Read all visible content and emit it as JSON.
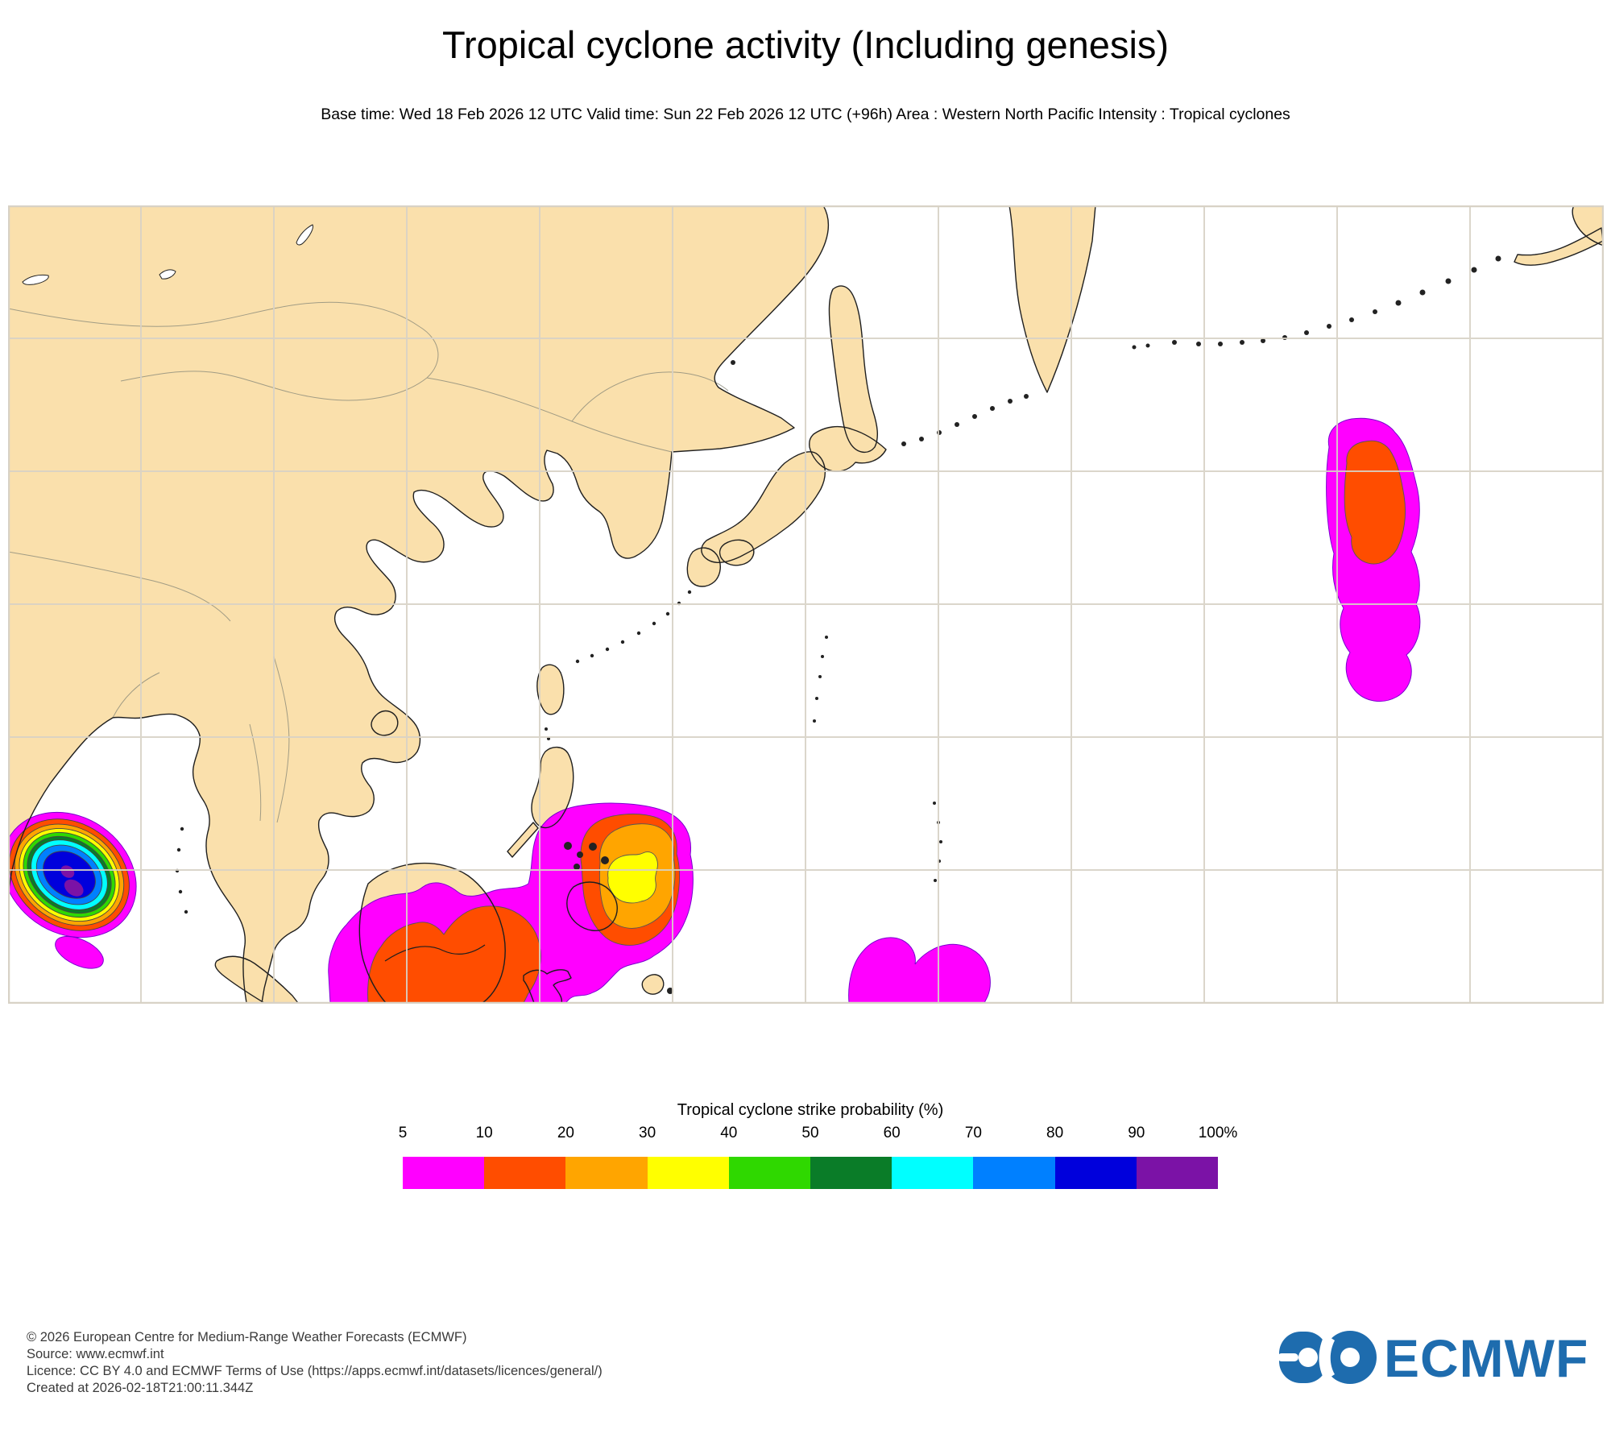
{
  "title": "Tropical cyclone activity (Including genesis)",
  "subtitle": "Base time: Wed 18 Feb 2026 12 UTC Valid time: Sun 22 Feb 2026 12 UTC (+96h) Area : Western North Pacific Intensity : Tropical cyclones",
  "legend": {
    "title": "Tropical cyclone strike probability (%)",
    "tick_labels": [
      "5",
      "10",
      "20",
      "30",
      "40",
      "50",
      "60",
      "70",
      "80",
      "90",
      "100%"
    ],
    "band_colors": [
      "#FF00FF",
      "#FF4D00",
      "#FFA500",
      "#FFFF00",
      "#2FD800",
      "#0A7C28",
      "#00FFFF",
      "#0080FF",
      "#0000DC",
      "#7B12A6"
    ]
  },
  "map": {
    "area_label": "Western North Pacific",
    "colors": {
      "land": "#FAE0AC",
      "ocean": "#FFFFFF",
      "grid": "#D8D2C6",
      "coastline": "#1F1F1F",
      "border": "#8B8B7A"
    },
    "regions": [
      {
        "name": "bay-of-bengal-system",
        "max_band": "90-100%"
      },
      {
        "name": "philippines-system",
        "max_band": "30-40%"
      },
      {
        "name": "borneo-system",
        "max_band": "10-20%"
      },
      {
        "name": "northwest-pacific-system",
        "max_band": "10-20%"
      },
      {
        "name": "caroline-islands-system",
        "max_band": "5-10%"
      }
    ]
  },
  "footer": {
    "lines": [
      "© 2026 European Centre for Medium-Range Weather Forecasts (ECMWF)",
      "Source: www.ecmwf.int",
      "Licence: CC BY 4.0 and ECMWF Terms of Use (https://apps.ecmwf.int/datasets/licences/general/)",
      "Created at 2026-02-18T21:00:11.344Z"
    ],
    "logo_text": "ECMWF",
    "logo_color": "#1E6CAE"
  }
}
